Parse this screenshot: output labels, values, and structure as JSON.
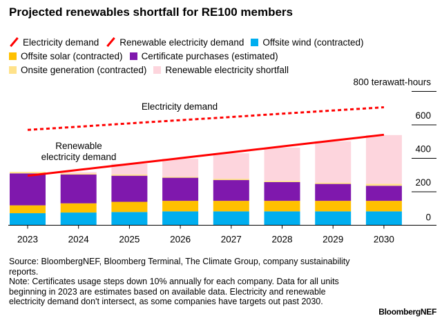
{
  "title": "Projected renewables shortfall for RE100 members",
  "legend": [
    {
      "label": "Electricity demand",
      "kind": "line",
      "color": "#ff0000"
    },
    {
      "label": "Renewable electricity demand",
      "kind": "line",
      "color": "#ff0000"
    },
    {
      "label": "Offsite wind (contracted)",
      "kind": "box",
      "color": "#00aeef"
    },
    {
      "label": "Offsite solar (contracted)",
      "kind": "box",
      "color": "#ffc000"
    },
    {
      "label": "Certificate purchases (estimated)",
      "kind": "box",
      "color": "#7f18ad"
    },
    {
      "label": "Onsite generation (contracted)",
      "kind": "box",
      "color": "#ffe28a"
    },
    {
      "label": "Renewable electricity shortfall",
      "kind": "box",
      "color": "#fdd5dd"
    }
  ],
  "chart_data": {
    "type": "bar",
    "stacked": true,
    "categories": [
      "2023",
      "2024",
      "2025",
      "2026",
      "2027",
      "2028",
      "2029",
      "2030"
    ],
    "ylim": [
      0,
      800
    ],
    "yticks": [
      0,
      200,
      400,
      600,
      800
    ],
    "ytick_labels": [
      "0",
      "200",
      "400",
      "600",
      "800 terawatt-hours"
    ],
    "series": [
      {
        "name": "Offsite wind (contracted)",
        "color": "#00aeef",
        "values": [
          72,
          76,
          79,
          83,
          83,
          83,
          83,
          83
        ]
      },
      {
        "name": "Offsite solar (contracted)",
        "color": "#ffc000",
        "values": [
          47,
          55,
          61,
          63,
          63,
          63,
          63,
          63
        ]
      },
      {
        "name": "Certificate purchases (estimated)",
        "color": "#7f18ad",
        "values": [
          191,
          172,
          156,
          138,
          124,
          112,
          101,
          90
        ]
      },
      {
        "name": "Onsite generation (contracted)",
        "color": "#ffe28a",
        "values": [
          9,
          7,
          8,
          6,
          8,
          7,
          8,
          12
        ]
      },
      {
        "name": "Renewable electricity shortfall",
        "color": "#fdd5dd",
        "values": [
          0,
          8,
          64,
          107,
          152,
          199,
          247,
          291
        ]
      }
    ],
    "lines": [
      {
        "name": "Electricity demand",
        "style": "dashed",
        "color": "#ff0000",
        "values": [
          570,
          589,
          609,
          628,
          647,
          667,
          686,
          705
        ]
      },
      {
        "name": "Renewable electricity demand",
        "style": "solid",
        "color": "#ff0000",
        "values": [
          296,
          331,
          366,
          401,
          436,
          471,
          506,
          541
        ]
      }
    ],
    "annotations": [
      {
        "text": "Electricity demand"
      },
      {
        "line1": "Renewable",
        "line2": "electricity demand"
      }
    ]
  },
  "footer": {
    "source": "Source: BloombergNEF, Bloomberg Terminal, The Climate Group, company sustainability reports.",
    "note": "Note: Certificates usage steps down 10% annually for each company. Data for all units beginning in 2023 are estimates based on available data. Electricity and renewable electricity demand don't intersect, as some companies have targets out past 2030.",
    "logo": "BloombergNEF"
  }
}
